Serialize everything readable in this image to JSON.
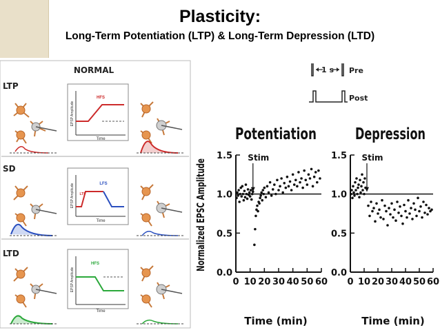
{
  "header": {
    "title": "Plasticity:",
    "subtitle": "Long-Term Potentiation (LTP) & Long-Term Depression (LTD)"
  },
  "left_panel": {
    "heading": "NORMAL",
    "rows": [
      {
        "label": "LTP",
        "stim": "HFS",
        "ylabel": "EPSP Amplitude",
        "xlabel": "Time",
        "color": "#cc2a2a"
      },
      {
        "label": "SD",
        "stim": "LFS",
        "stim2": "LTP",
        "ylabel": "EPSP Amplitude",
        "xlabel": "Time",
        "color": "#2a4fbf"
      },
      {
        "label": "LTD",
        "stim": "HFS",
        "ylabel": "EPSP Amplitude",
        "xlabel": "Time",
        "color": "#2aa83a"
      }
    ]
  },
  "protocol": {
    "pre": "Pre",
    "post": "Post",
    "interval": "1 s"
  },
  "chart_data": [
    {
      "type": "scatter",
      "title": "Potentiation",
      "ylabel": "Normalized EPSC Amplitude",
      "xlabel": "Time (min)",
      "xlim": [
        0,
        60
      ],
      "ylim": [
        0.0,
        1.5
      ],
      "xticks": [
        "0",
        "10",
        "20",
        "30",
        "40",
        "50",
        "60"
      ],
      "yticks": [
        "0.0",
        "0.5",
        "1.0",
        "1.5"
      ],
      "baseline": 1.0,
      "annotation": {
        "label": "Stim",
        "x": 12
      },
      "x": [
        0.5,
        1,
        1.5,
        2,
        2.5,
        3,
        3.5,
        4,
        4.5,
        5,
        5.5,
        6,
        6.5,
        7,
        7.5,
        8,
        8.5,
        9,
        9.5,
        10,
        10.5,
        11,
        11.5,
        12,
        13,
        13.5,
        14,
        14.5,
        15,
        15.5,
        16,
        16.5,
        17,
        17.5,
        18,
        18.5,
        19,
        19.5,
        20,
        21,
        22,
        23,
        24,
        25,
        26,
        27,
        28,
        29,
        30,
        31,
        32,
        33,
        34,
        35,
        36,
        37,
        38,
        39,
        40,
        41,
        42,
        43,
        44,
        45,
        46,
        47,
        48,
        49,
        50,
        51,
        52,
        53,
        54,
        55,
        56,
        57,
        58,
        59
      ],
      "y": [
        0.95,
        1.02,
        0.98,
        1.05,
        0.9,
        1.0,
        1.08,
        0.97,
        1.1,
        1.0,
        0.92,
        1.04,
        0.96,
        1.12,
        1.0,
        0.94,
        1.06,
        0.99,
        1.02,
        0.97,
        1.05,
        0.93,
        1.0,
        1.03,
        0.35,
        0.55,
        0.72,
        0.8,
        0.85,
        0.78,
        0.9,
        0.88,
        0.95,
        0.98,
        1.02,
        0.92,
        1.05,
        1.0,
        1.08,
        0.96,
        1.1,
        1.02,
        1.15,
        0.98,
        1.06,
        1.12,
        1.0,
        1.18,
        1.05,
        1.1,
        1.2,
        1.02,
        1.14,
        1.08,
        1.22,
        1.1,
        1.16,
        1.05,
        1.25,
        1.12,
        1.18,
        1.1,
        1.28,
        1.15,
        1.2,
        1.08,
        1.3,
        1.18,
        1.12,
        1.25,
        1.2,
        1.32,
        1.1,
        1.22,
        1.28,
        1.15,
        1.3,
        1.2
      ]
    },
    {
      "type": "scatter",
      "title": "Depression",
      "xlabel": "Time (min)",
      "xlim": [
        0,
        60
      ],
      "ylim": [
        0.0,
        1.5
      ],
      "xticks": [
        "0",
        "10",
        "20",
        "30",
        "40",
        "50",
        "60"
      ],
      "yticks": [
        "0.0",
        "0.5",
        "1.0",
        "1.5"
      ],
      "baseline": 1.0,
      "annotation": {
        "label": "Stim",
        "x": 12
      },
      "x": [
        0.5,
        1,
        1.5,
        2,
        2.5,
        3,
        3.5,
        4,
        4.5,
        5,
        5.5,
        6,
        6.5,
        7,
        7.5,
        8,
        8.5,
        9,
        9.5,
        10,
        10.5,
        11,
        13,
        14,
        15,
        16,
        17,
        18,
        19,
        20,
        21,
        22,
        23,
        24,
        25,
        26,
        27,
        28,
        29,
        30,
        31,
        32,
        33,
        34,
        35,
        36,
        37,
        38,
        39,
        40,
        41,
        42,
        43,
        44,
        45,
        46,
        47,
        48,
        49,
        50,
        51,
        52,
        53,
        54,
        55,
        56,
        57,
        58,
        59
      ],
      "y": [
        1.0,
        1.05,
        0.95,
        1.1,
        1.02,
        0.98,
        1.15,
        1.05,
        1.2,
        1.0,
        1.08,
        1.12,
        0.96,
        1.18,
        1.02,
        1.1,
        1.25,
        1.05,
        1.15,
        1.0,
        1.2,
        1.08,
        0.85,
        0.72,
        0.9,
        0.78,
        0.82,
        0.65,
        0.88,
        0.75,
        0.8,
        0.7,
        0.92,
        0.68,
        0.85,
        0.78,
        0.6,
        0.82,
        0.74,
        0.88,
        0.7,
        0.8,
        0.66,
        0.9,
        0.76,
        0.84,
        0.72,
        0.62,
        0.86,
        0.78,
        0.7,
        0.92,
        0.75,
        0.82,
        0.68,
        0.88,
        0.8,
        0.72,
        0.95,
        0.78,
        0.84,
        0.7,
        0.9,
        0.76,
        0.86,
        0.74,
        0.82,
        0.78,
        0.8
      ]
    }
  ]
}
